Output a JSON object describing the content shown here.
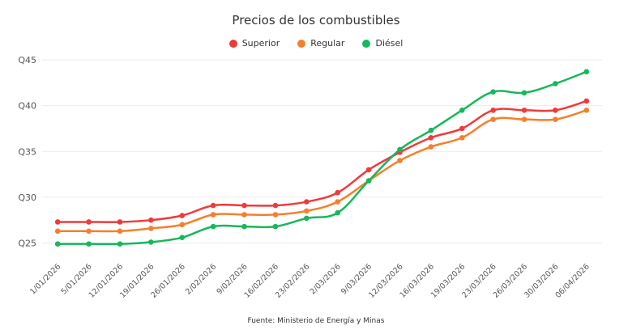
{
  "chart_data": {
    "type": "line",
    "title": "Precios de los combustibles",
    "xlabel": "",
    "ylabel": "",
    "source": "Fuente: Ministerio de Energía y Minas",
    "categories": [
      "1/01/2026",
      "5/01/2026",
      "12/01/2026",
      "19/01/2026",
      "26/01/2026",
      "2/02/2026",
      "9/02/2026",
      "16/02/2026",
      "23/02/2026",
      "2/03/2026",
      "9/03/2026",
      "12/03/2026",
      "16/03/2026",
      "19/03/2026",
      "23/03/2026",
      "26/03/2026",
      "30/03/2026",
      "06/04/2026"
    ],
    "yticks": [
      25,
      30,
      35,
      40,
      45
    ],
    "ytick_labels": [
      "Q25",
      "Q30",
      "Q35",
      "Q40",
      "Q45"
    ],
    "ylim": [
      22.5,
      46
    ],
    "grid": true,
    "legend_position": "top-center",
    "series": [
      {
        "name": "Superior",
        "color": "#f03a3a",
        "values": [
          27.3,
          27.3,
          27.3,
          27.5,
          28.0,
          29.1,
          29.1,
          29.1,
          29.5,
          30.5,
          33.0,
          34.9,
          36.5,
          37.5,
          39.5,
          39.5,
          39.5,
          40.5
        ]
      },
      {
        "name": "Regular",
        "color": "#f77f2b",
        "values": [
          26.3,
          26.3,
          26.3,
          26.6,
          27.0,
          28.1,
          28.1,
          28.1,
          28.5,
          29.5,
          31.8,
          34.0,
          35.5,
          36.5,
          38.5,
          38.5,
          38.5,
          39.5
        ]
      },
      {
        "name": "Diésel",
        "color": "#16b85a",
        "values": [
          24.9,
          24.9,
          24.9,
          25.1,
          25.6,
          26.8,
          26.8,
          26.8,
          27.7,
          28.3,
          31.8,
          35.2,
          37.3,
          39.5,
          41.5,
          41.4,
          42.4,
          43.7
        ]
      }
    ]
  }
}
